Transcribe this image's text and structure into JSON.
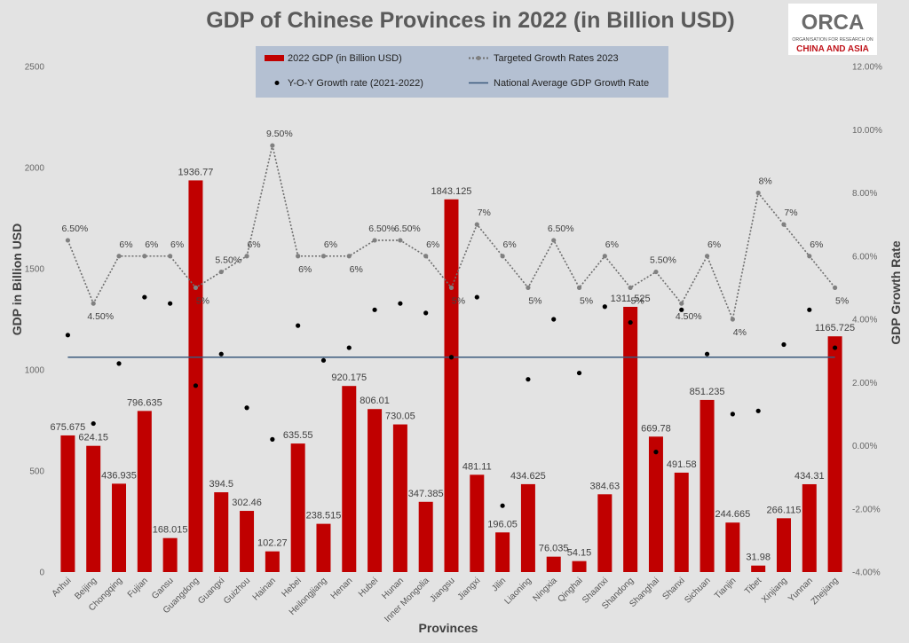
{
  "chart_data": {
    "type": "bar",
    "title": "GDP of Chinese Provinces in 2022 (in Billion USD)",
    "xlabel": "Provinces",
    "ylabel": "GDP in Billion USD",
    "y2label": "GDP Growth Rate",
    "ylim": [
      0,
      2500
    ],
    "yticks": [
      "0",
      "500",
      "1000",
      "1500",
      "2000",
      "2500"
    ],
    "y2lim": [
      -4,
      12
    ],
    "y2ticks": [
      "-4.00%",
      "-2.00%",
      "0.00%",
      "2.00%",
      "4.00%",
      "6.00%",
      "8.00%",
      "10.00%",
      "12.00%"
    ],
    "categories": [
      "Anhui",
      "Beijing",
      "Chongqing",
      "Fujian",
      "Gansu",
      "Guangdong",
      "Guangxi",
      "Guizhou",
      "Hainan",
      "Hebei",
      "Heilongjiang",
      "Henan",
      "Hubei",
      "Hunan",
      "Inner Mongolia",
      "Jiangsu",
      "Jiangxi",
      "Jilin",
      "Liaoning",
      "Ningxia",
      "Qinghai",
      "Shaanxi",
      "Shandong",
      "Shanghai",
      "Shanxi",
      "Sichuan",
      "Tianjin",
      "Tibet",
      "Xinjiang",
      "Yunnan",
      "Zhejiang"
    ],
    "series": [
      {
        "name": "2022 GDP (in Billion USD)",
        "axis": "left",
        "color": "#c00000",
        "values": [
          675.675,
          624.15,
          436.935,
          796.635,
          168.015,
          1936.77,
          394.5,
          302.46,
          102.27,
          635.55,
          238.515,
          920.175,
          806.01,
          730.05,
          347.385,
          1843.125,
          481.11,
          196.05,
          434.625,
          76.035,
          54.15,
          384.63,
          1311.525,
          669.78,
          491.58,
          851.235,
          244.665,
          31.98,
          266.115,
          434.31,
          1165.725
        ],
        "labels": [
          "675.675",
          "624.15",
          "436.935",
          "796.635",
          "168.015",
          "1936.77",
          "394.5",
          "302.46",
          "102.27",
          "635.55",
          "238.515",
          "920.175",
          "806.01",
          "730.05",
          "347.385",
          "1843.125",
          "481.11",
          "196.05",
          "434.625",
          "76.035",
          "54.15",
          "384.63",
          "1311.525",
          "669.78",
          "491.58",
          "851.235",
          "244.665",
          "31.98",
          "266.115",
          "434.31",
          "1165.725"
        ]
      },
      {
        "name": "Targeted Growth Rates 2023",
        "axis": "right",
        "style": "dotted-line",
        "color": "#808080",
        "values": [
          6.5,
          4.5,
          6,
          6,
          6,
          5,
          5.5,
          6,
          9.5,
          6,
          6,
          6,
          6.5,
          6.5,
          6,
          5,
          7,
          6,
          5,
          6.5,
          5,
          6,
          5,
          5.5,
          4.5,
          6,
          4,
          8,
          7,
          6,
          5
        ],
        "labels": [
          "6.50%",
          "4.50%",
          "6%",
          "6%",
          "6%",
          "5%",
          "5.50%",
          "6%",
          "9.50%",
          "6%",
          "6%",
          "6%",
          "6.50%",
          "6.50%",
          "6%",
          "5%",
          "7%",
          "6%",
          "5%",
          "6.50%",
          "5%",
          "6%",
          "5%",
          "5.50%",
          "4.50%",
          "6%",
          "4%",
          "8%",
          "7%",
          "6%",
          "5%"
        ]
      },
      {
        "name": "Y-O-Y Growth rate (2021-2022)",
        "axis": "right",
        "style": "markers",
        "color": "#000000",
        "values": [
          3.5,
          0.7,
          2.6,
          4.7,
          4.5,
          1.9,
          2.9,
          1.2,
          0.2,
          3.8,
          2.7,
          3.1,
          4.3,
          4.5,
          4.2,
          2.8,
          4.7,
          -1.9,
          2.1,
          4.0,
          2.3,
          4.4,
          3.9,
          -0.2,
          4.3,
          2.9,
          1.0,
          1.1,
          3.2,
          4.3,
          3.1
        ]
      },
      {
        "name": "National Average GDP Growth Rate",
        "axis": "right",
        "style": "line",
        "color": "#3a5a7c",
        "values": [
          2.8,
          2.8,
          2.8,
          2.8,
          2.8,
          2.8,
          2.8,
          2.8,
          2.8,
          2.8,
          2.8,
          2.8,
          2.8,
          2.8,
          2.8,
          2.8,
          2.8,
          2.8,
          2.8,
          2.8,
          2.8,
          2.8,
          2.8,
          2.8,
          2.8,
          2.8,
          2.8,
          2.8,
          2.8,
          2.8,
          2.8
        ]
      }
    ],
    "legend": {
      "placement": "top-center",
      "background": "#b4c0d2",
      "items": [
        "2022 GDP (in Billion USD)",
        "Targeted Growth Rates 2023",
        "Y-O-Y Growth rate (2021-2022)",
        "National Average GDP Growth Rate"
      ]
    },
    "grid": false
  },
  "logo": {
    "name": "ORCA",
    "line1": "ORGANISATION FOR RESEARCH ON",
    "line2": "CHINA AND ASIA"
  }
}
